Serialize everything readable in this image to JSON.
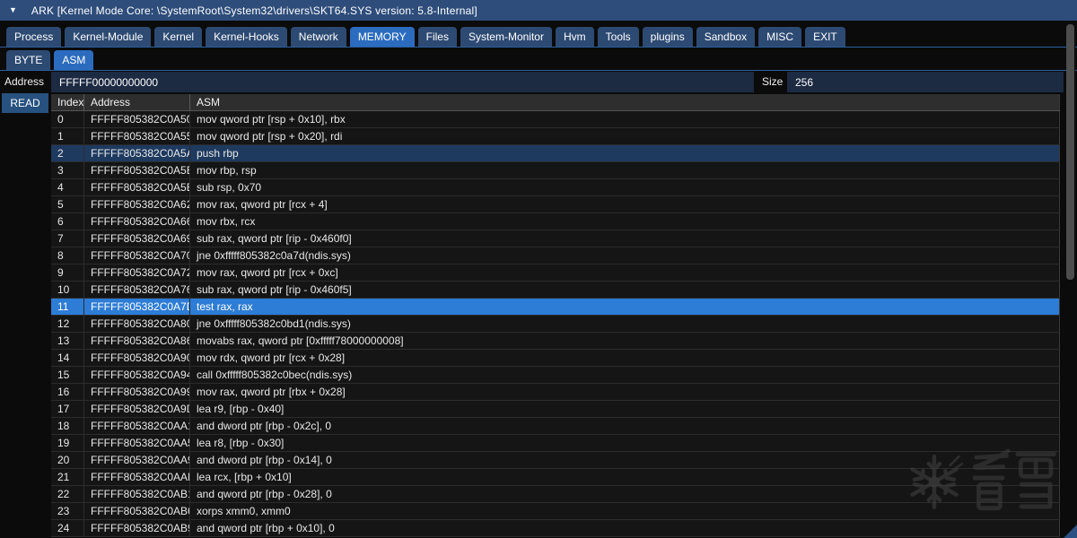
{
  "window": {
    "title": "ARK [Kernel Mode Core: \\SystemRoot\\System32\\drivers\\SKT64.SYS version: 5.8-Internal]"
  },
  "tabs": {
    "items": [
      "Process",
      "Kernel-Module",
      "Kernel",
      "Kernel-Hooks",
      "Network",
      "MEMORY",
      "Files",
      "System-Monitor",
      "Hvm",
      "Tools",
      "plugins",
      "Sandbox",
      "MISC",
      "EXIT"
    ],
    "selected": "MEMORY"
  },
  "subtabs": {
    "items": [
      "BYTE",
      "ASM"
    ],
    "selected": "ASM"
  },
  "memory_form": {
    "address_label": "Address",
    "address_value": "FFFFF00000000000",
    "size_label": "Size",
    "size_value": "256",
    "read_button": "READ"
  },
  "table": {
    "columns": [
      "Index",
      "Address",
      "ASM"
    ],
    "marked_row_index": 2,
    "selected_row_index": 11,
    "rows": [
      [
        "0",
        "FFFFF805382C0A50",
        "mov qword ptr [rsp + 0x10], rbx"
      ],
      [
        "1",
        "FFFFF805382C0A55",
        "mov qword ptr [rsp + 0x20], rdi"
      ],
      [
        "2",
        "FFFFF805382C0A5A",
        "push rbp"
      ],
      [
        "3",
        "FFFFF805382C0A5B",
        "mov rbp, rsp"
      ],
      [
        "4",
        "FFFFF805382C0A5E",
        "sub rsp, 0x70"
      ],
      [
        "5",
        "FFFFF805382C0A62",
        "mov rax, qword ptr [rcx + 4]"
      ],
      [
        "6",
        "FFFFF805382C0A66",
        "mov rbx, rcx"
      ],
      [
        "7",
        "FFFFF805382C0A69",
        "sub rax, qword ptr [rip - 0x460f0]"
      ],
      [
        "8",
        "FFFFF805382C0A70",
        "jne 0xfffff805382c0a7d(ndis.sys)"
      ],
      [
        "9",
        "FFFFF805382C0A72",
        "mov rax, qword ptr [rcx + 0xc]"
      ],
      [
        "10",
        "FFFFF805382C0A76",
        "sub rax, qword ptr [rip - 0x460f5]"
      ],
      [
        "11",
        "FFFFF805382C0A7D",
        "test rax, rax"
      ],
      [
        "12",
        "FFFFF805382C0A80",
        "jne 0xfffff805382c0bd1(ndis.sys)"
      ],
      [
        "13",
        "FFFFF805382C0A86",
        "movabs rax, qword ptr [0xfffff78000000008]"
      ],
      [
        "14",
        "FFFFF805382C0A90",
        "mov rdx, qword ptr [rcx + 0x28]"
      ],
      [
        "15",
        "FFFFF805382C0A94",
        "call 0xfffff805382c0bec(ndis.sys)"
      ],
      [
        "16",
        "FFFFF805382C0A99",
        "mov rax, qword ptr [rbx + 0x28]"
      ],
      [
        "17",
        "FFFFF805382C0A9D",
        "lea r9, [rbp - 0x40]"
      ],
      [
        "18",
        "FFFFF805382C0AA1",
        "and dword ptr [rbp - 0x2c], 0"
      ],
      [
        "19",
        "FFFFF805382C0AA5",
        "lea r8, [rbp - 0x30]"
      ],
      [
        "20",
        "FFFFF805382C0AA9",
        "and dword ptr [rbp - 0x14], 0"
      ],
      [
        "21",
        "FFFFF805382C0AAD",
        "lea rcx, [rbp + 0x10]"
      ],
      [
        "22",
        "FFFFF805382C0AB1",
        "and qword ptr [rbp - 0x28], 0"
      ],
      [
        "23",
        "FFFFF805382C0AB6",
        "xorps xmm0, xmm0"
      ],
      [
        "24",
        "FFFFF805382C0AB9",
        "and qword ptr [rbp + 0x10], 0"
      ]
    ]
  },
  "watermark": {
    "text": "看雪",
    "icon": "snowflake-icon"
  },
  "colors": {
    "titlebar": "#2e4d7b",
    "tab_active": "#2b6cbf",
    "tab_inactive": "#2d4a73",
    "accent_line": "#2a5f9e",
    "input_bg": "#1c2a42",
    "read_button": "#27517f",
    "row_selected": "#2d7cd6",
    "row_marked": "#1e3a5f"
  }
}
